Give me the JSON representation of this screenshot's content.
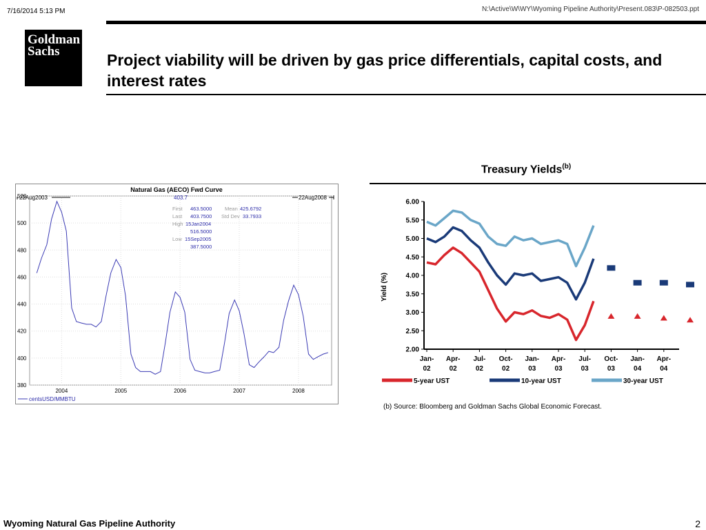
{
  "header": {
    "date": "7/16/2014 5:13 PM",
    "file_path": "N:\\Active\\W\\WY\\Wyoming Pipeline Authority\\Present.083\\P-082503.ppt"
  },
  "logo": {
    "line1": "Goldman",
    "line2": "Sachs"
  },
  "slide_title": "Project viability will be driven by gas price differentials, capital costs, and interest rates",
  "footer": {
    "organization": "Wyoming Natural Gas Pipeline Authority",
    "page_number": "2"
  },
  "colors": {
    "gas_line": "#3a3ab4",
    "ust5": "#d8262c",
    "ust10": "#1a3a78",
    "ust30": "#6aa6c8"
  },
  "chart_data": [
    {
      "type": "line",
      "title": "Natural Gas (AECO) Fwd Curve",
      "date_start_label": "22Aug2003",
      "date_end_label": "22Aug2008",
      "current_value": "403.7",
      "stats": {
        "first_label": "First",
        "first": "463.5000",
        "last_label": "Last",
        "last": "403.7500",
        "high_label": "High",
        "high_date": "15Jan2004",
        "high": "516.5000",
        "low_label": "Low",
        "low_date": "15Sep2005",
        "low": "387.5000",
        "mean_label": "Mean",
        "mean": "425.6792",
        "stddev_label": "Std Dev",
        "stddev": "33.7933"
      },
      "ylim": [
        380,
        520
      ],
      "y_ticks": [
        "520",
        "500",
        "480",
        "460",
        "440",
        "420",
        "400",
        "380"
      ],
      "x_ticks": [
        "2004",
        "2005",
        "2006",
        "2007",
        "2008"
      ],
      "legend": "centsUSD/MMBTU",
      "grid": true,
      "x": [
        2003.62,
        2003.7,
        2003.79,
        2003.87,
        2003.96,
        2004.04,
        2004.12,
        2004.21,
        2004.29,
        2004.37,
        2004.46,
        2004.54,
        2004.62,
        2004.71,
        2004.79,
        2004.87,
        2004.96,
        2005.04,
        2005.12,
        2005.21,
        2005.29,
        2005.37,
        2005.46,
        2005.54,
        2005.62,
        2005.71,
        2005.79,
        2005.87,
        2005.96,
        2006.04,
        2006.12,
        2006.21,
        2006.29,
        2006.37,
        2006.46,
        2006.54,
        2006.62,
        2006.71,
        2006.79,
        2006.87,
        2006.96,
        2007.04,
        2007.12,
        2007.21,
        2007.29,
        2007.37,
        2007.46,
        2007.54,
        2007.62,
        2007.71,
        2007.79,
        2007.87,
        2007.96,
        2008.04,
        2008.12,
        2008.21,
        2008.29,
        2008.37,
        2008.46,
        2008.54
      ],
      "values": [
        463,
        474,
        484,
        503,
        516,
        508,
        494,
        437,
        427,
        426,
        425,
        425,
        423,
        427,
        446,
        463,
        473,
        467,
        446,
        403,
        393,
        390,
        390,
        390,
        388,
        390,
        411,
        434,
        449,
        445,
        434,
        399,
        391,
        390,
        389,
        389,
        390,
        391,
        411,
        433,
        443,
        435,
        418,
        395,
        393,
        397,
        401,
        405,
        404,
        408,
        428,
        442,
        454,
        447,
        431,
        403,
        399,
        401,
        403,
        404
      ]
    },
    {
      "type": "line",
      "title": "Treasury Yields",
      "title_note": "(b)",
      "ylabel": "Yield (%)",
      "ylim": [
        2.0,
        6.0
      ],
      "y_ticks": [
        "6.00",
        "5.50",
        "5.00",
        "4.50",
        "4.00",
        "3.50",
        "3.00",
        "2.50",
        "2.00"
      ],
      "x_ticks": [
        {
          "line1": "Jan-",
          "line2": "02"
        },
        {
          "line1": "Apr-",
          "line2": "02"
        },
        {
          "line1": "Jul-",
          "line2": "02"
        },
        {
          "line1": "Oct-",
          "line2": "02"
        },
        {
          "line1": "Jan-",
          "line2": "03"
        },
        {
          "line1": "Apr-",
          "line2": "03"
        },
        {
          "line1": "Jul-",
          "line2": "03"
        },
        {
          "line1": "Oct-",
          "line2": "03"
        },
        {
          "line1": "Jan-",
          "line2": "04"
        },
        {
          "line1": "Apr-",
          "line2": "04"
        }
      ],
      "x": [
        "Jan-02",
        "Feb-02",
        "Mar-02",
        "Apr-02",
        "May-02",
        "Jun-02",
        "Jul-02",
        "Aug-02",
        "Sep-02",
        "Oct-02",
        "Nov-02",
        "Dec-02",
        "Jan-03",
        "Feb-03",
        "Mar-03",
        "Apr-03",
        "May-03",
        "Jun-03",
        "Jul-03",
        "Aug-03"
      ],
      "series": [
        {
          "name": "5-year UST",
          "values": [
            4.35,
            4.3,
            4.55,
            4.75,
            4.6,
            4.35,
            4.1,
            3.6,
            3.1,
            2.75,
            3.0,
            2.95,
            3.05,
            2.9,
            2.85,
            2.95,
            2.8,
            2.25,
            2.65,
            3.3
          ],
          "forecast": [
            {
              "date": "Oct-03",
              "value": 2.9
            },
            {
              "date": "Jan-04",
              "value": 2.9
            },
            {
              "date": "Apr-04",
              "value": 2.85
            },
            {
              "date": "Jul-04",
              "value": 2.8
            }
          ]
        },
        {
          "name": "10-year UST",
          "values": [
            5.0,
            4.9,
            5.05,
            5.3,
            5.2,
            4.95,
            4.75,
            4.35,
            4.0,
            3.75,
            4.05,
            4.0,
            4.05,
            3.85,
            3.9,
            3.95,
            3.8,
            3.35,
            3.8,
            4.45
          ],
          "forecast": [
            {
              "date": "Oct-03",
              "value": 4.2
            },
            {
              "date": "Jan-04",
              "value": 3.8
            },
            {
              "date": "Apr-04",
              "value": 3.8
            },
            {
              "date": "Jul-04",
              "value": 3.75
            }
          ]
        },
        {
          "name": "30-year UST",
          "values": [
            5.45,
            5.35,
            5.55,
            5.75,
            5.7,
            5.5,
            5.4,
            5.05,
            4.85,
            4.8,
            5.05,
            4.95,
            5.0,
            4.85,
            4.9,
            4.95,
            4.85,
            4.25,
            4.75,
            5.35
          ]
        }
      ],
      "legend_position": "bottom"
    }
  ],
  "treasury_source": "(b) Source: Bloomberg and Goldman Sachs Global Economic Forecast."
}
